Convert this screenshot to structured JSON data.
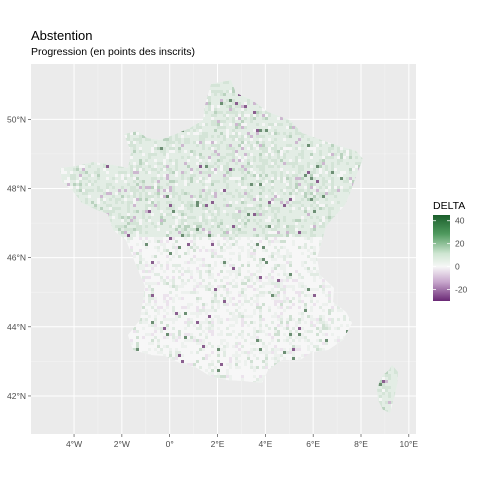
{
  "title": "Abstention",
  "subtitle": "Progression (en points des inscrits)",
  "chart_data": {
    "type": "map",
    "region": "France (communes)",
    "x_ticks": [
      "4°W",
      "2°W",
      "0°",
      "2°E",
      "4°E",
      "6°E",
      "8°E",
      "10°E"
    ],
    "x_values": [
      -4,
      -2,
      0,
      2,
      4,
      6,
      8,
      10
    ],
    "y_ticks": [
      "42°N",
      "44°N",
      "46°N",
      "48°N",
      "50°N"
    ],
    "y_values": [
      42,
      44,
      46,
      48,
      50
    ],
    "xlim": [
      -5.8,
      10.3
    ],
    "ylim": [
      40.9,
      51.6
    ],
    "fill_variable": "DELTA",
    "legend": {
      "title": "DELTA",
      "ticks": [
        40,
        20,
        0,
        -20
      ],
      "range": [
        -30,
        45
      ],
      "colors": {
        "low": "#762a83",
        "mid": "#f7f7f7",
        "high": "#1b7837"
      },
      "placement": "right"
    },
    "panel_background": "#ebebeb",
    "grid": true
  }
}
